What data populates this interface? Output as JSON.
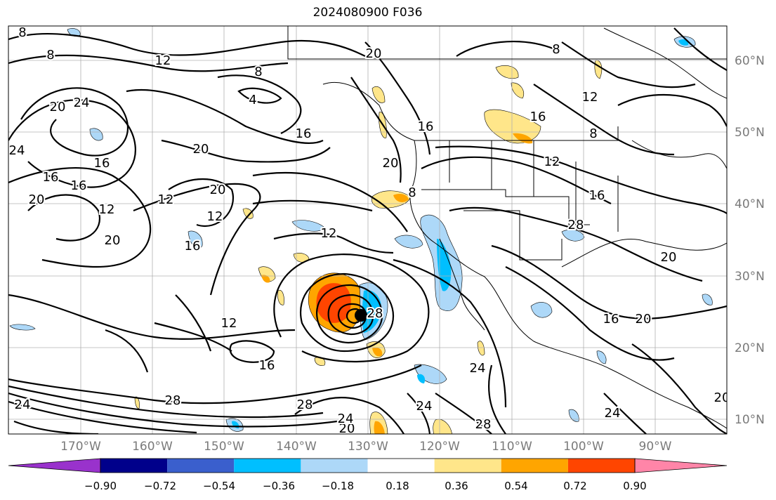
{
  "title": "2024080900 F036",
  "lat_ticks": [
    "60°N",
    "50°N",
    "40°N",
    "30°N",
    "20°N",
    "10°N"
  ],
  "lon_ticks": [
    "170°W",
    "160°W",
    "150°W",
    "140°W",
    "130°W",
    "120°W",
    "110°W",
    "100°W",
    "90°W"
  ],
  "contour_labels": [
    "8",
    "8",
    "12",
    "8",
    "20",
    "4",
    "20",
    "24",
    "16",
    "16",
    "20",
    "24",
    "16",
    "20",
    "12",
    "20",
    "16",
    "20",
    "12",
    "16",
    "12",
    "20",
    "16",
    "12",
    "8",
    "12",
    "16",
    "12",
    "8",
    "16",
    "28",
    "20",
    "16",
    "20",
    "28",
    "12",
    "16",
    "28",
    "24",
    "24",
    "20",
    "24",
    "28",
    "24",
    "24",
    "28",
    "20",
    "8"
  ],
  "colorbar": {
    "ticks": [
      "−0.90",
      "−0.72",
      "−0.54",
      "−0.36",
      "−0.18",
      "0.18",
      "0.36",
      "0.54",
      "0.72",
      "0.90"
    ],
    "colors": [
      "#9932cc",
      "#00008b",
      "#3a5fcd",
      "#00bfff",
      "#add8f8",
      "#ffffff",
      "#ffe68a",
      "#ffa500",
      "#ff4500",
      "#b22222",
      "#ff85a8"
    ]
  }
}
